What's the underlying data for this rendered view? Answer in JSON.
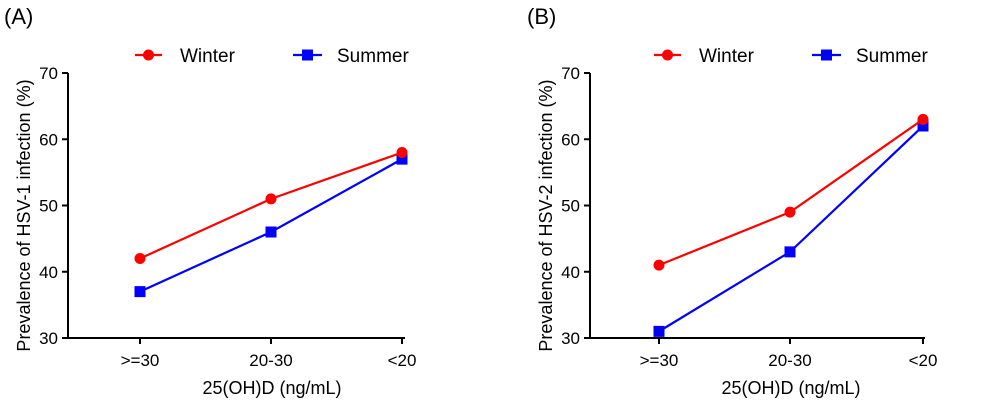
{
  "chart_data": [
    {
      "type": "line",
      "panel_label": "(A)",
      "categories": [
        ">=30",
        "20-30",
        "<20"
      ],
      "series": [
        {
          "name": "Winter",
          "color": "#ff0000",
          "marker": "circle",
          "values": [
            42,
            51,
            58
          ]
        },
        {
          "name": "Summer",
          "color": "#0000ff",
          "marker": "square",
          "values": [
            37,
            46,
            57
          ]
        }
      ],
      "xlabel": "25(OH)D (ng/mL)",
      "ylabel": "Prevalence of HSV-1 infection (%)",
      "ylim": [
        30,
        70
      ],
      "yticks": [
        "30",
        "40",
        "50",
        "60",
        "70"
      ],
      "grid": false,
      "legend_position": "top"
    },
    {
      "type": "line",
      "panel_label": "(B)",
      "categories": [
        ">=30",
        "20-30",
        "<20"
      ],
      "series": [
        {
          "name": "Winter",
          "color": "#ff0000",
          "marker": "circle",
          "values": [
            41,
            49,
            63
          ]
        },
        {
          "name": "Summer",
          "color": "#0000ff",
          "marker": "square",
          "values": [
            31,
            43,
            62
          ]
        }
      ],
      "xlabel": "25(OH)D (ng/mL)",
      "ylabel": "Prevalence of HSV-2 infection (%)",
      "ylim": [
        30,
        70
      ],
      "yticks": [
        "30",
        "40",
        "50",
        "60",
        "70"
      ],
      "grid": false,
      "legend_position": "top"
    }
  ]
}
